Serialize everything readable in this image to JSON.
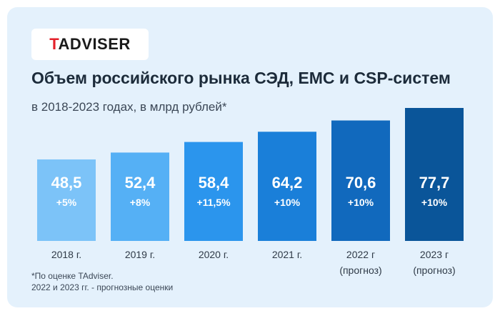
{
  "brand": {
    "logo_first": "T",
    "logo_rest": "ADVISER"
  },
  "title": "Объем российского рынка СЭД, ЕМС и CSP-систем",
  "subtitle": "в 2018-2023 годах, в млрд рублей*",
  "footnote": {
    "line1": "*По оценке TAdviser.",
    "line2": "2022 и 2023 гг. - прогнозные оценки"
  },
  "colors": {
    "background": "#e4f1fc",
    "bars": [
      "#7cc3f8",
      "#55b0f5",
      "#2b95ed",
      "#1a7fd9",
      "#1169bd",
      "#0a5599"
    ]
  },
  "chart_data": {
    "type": "bar",
    "categories": [
      "2018 г.",
      "2019 г.",
      "2020 г.",
      "2021 г.",
      "2022 г|(прогноз)",
      "2023 г|(прогноз)"
    ],
    "values": [
      48.5,
      52.4,
      58.4,
      64.2,
      70.6,
      77.7
    ],
    "value_labels": [
      "48,5",
      "52,4",
      "58,4",
      "64,2",
      "70,6",
      "77,7"
    ],
    "growth_labels": [
      "+5%",
      "+8%",
      "+11,5%",
      "+10%",
      "+10%",
      "+10%"
    ],
    "title": "Объем российского рынка СЭД, ЕМС и CSP-систем",
    "subtitle": "в 2018-2023 годах, в млрд рублей*",
    "xlabel": "",
    "ylabel": "",
    "grid": false
  }
}
